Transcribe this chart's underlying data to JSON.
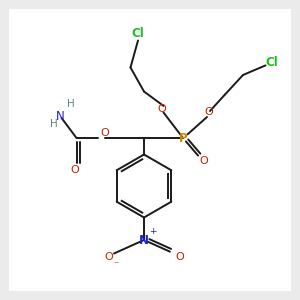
{
  "background_color": "#ebebeb",
  "bond_color": "#1a1a1a",
  "colors": {
    "Cl": "#22bb22",
    "O": "#cc2200",
    "P": "#cc8800",
    "N": "#2222cc",
    "H": "#558888",
    "C": "#1a1a1a"
  },
  "figsize": [
    3.0,
    3.0
  ],
  "dpi": 100
}
